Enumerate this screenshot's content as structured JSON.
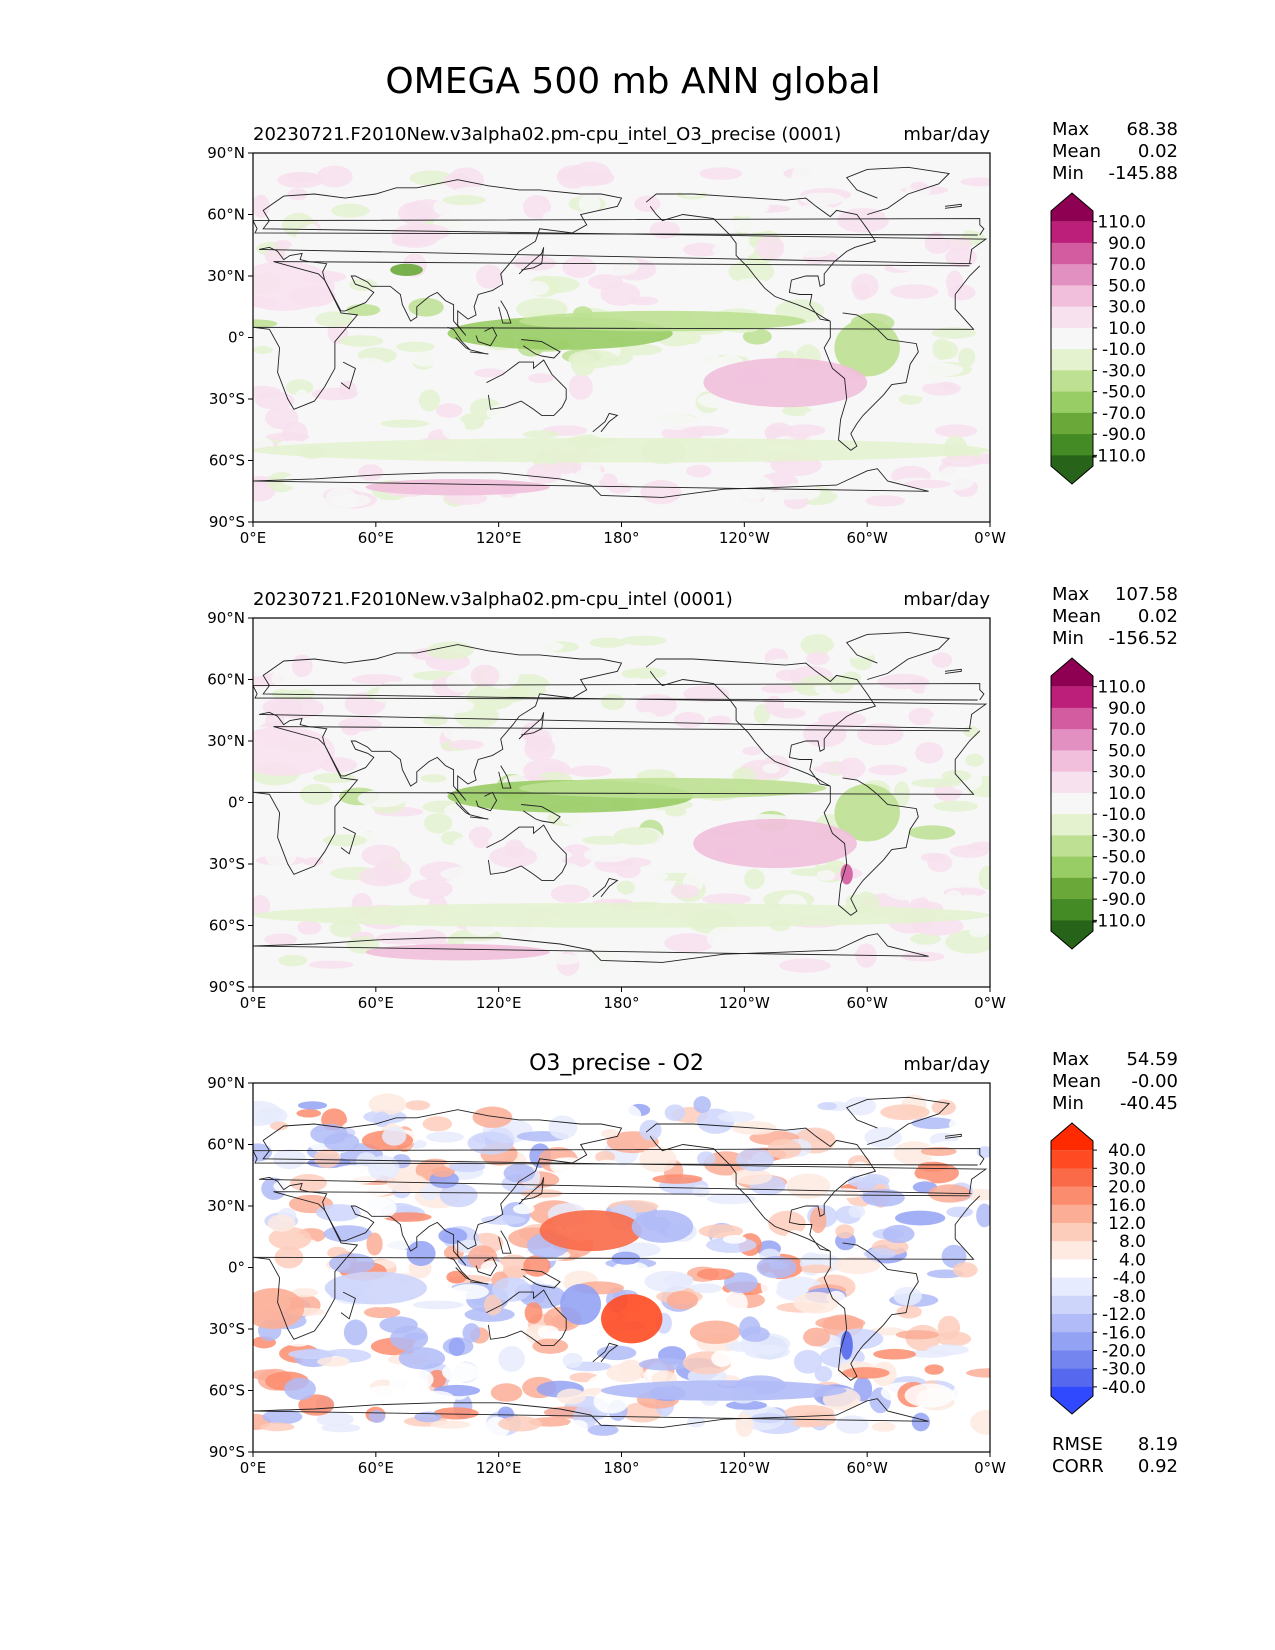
{
  "figure_title": "OMEGA 500 mb ANN global",
  "chart_data": [
    {
      "type": "heatmap",
      "title": "20230721.F2010New.v3alpha02.pm-cpu_intel_O3_precise (0001)",
      "units": "mbar/day",
      "stats": {
        "max": "68.38",
        "mean": "0.02",
        "min": "-145.88"
      },
      "stat_labels": {
        "max": "Max",
        "mean": "Mean",
        "min": "Min"
      },
      "x_ticks": [
        "0°E",
        "60°E",
        "120°E",
        "180°",
        "120°W",
        "60°W",
        "0°W"
      ],
      "y_ticks": [
        "90°N",
        "60°N",
        "30°N",
        "0°",
        "30°S",
        "60°S",
        "90°S"
      ],
      "x_range": [
        0,
        360
      ],
      "y_range": [
        -90,
        90
      ],
      "colorbar_ticks": [
        "110.0",
        "90.0",
        "70.0",
        "50.0",
        "30.0",
        "10.0",
        "-10.0",
        "-30.0",
        "-50.0",
        "-70.0",
        "-90.0",
        "-110.0"
      ],
      "colorbar_colors": [
        "#8e0152",
        "#bc1f79",
        "#d35ba0",
        "#e28fc1",
        "#f1bfdc",
        "#f8e1ef",
        "#f7f7f7",
        "#e4f2d0",
        "#bde092",
        "#98cc64",
        "#6aa83a",
        "#448b25",
        "#276419"
      ],
      "colorbar_extend": "both",
      "features": [
        {
          "name": "West Pacific ascent",
          "value": -60,
          "lon": 150,
          "lat": 2,
          "w": 55,
          "h": 8
        },
        {
          "name": "ITCZ Pacific",
          "value": -40,
          "lon": 200,
          "lat": 8,
          "w": 70,
          "h": 5
        },
        {
          "name": "Amazon ascent",
          "value": -40,
          "lon": 300,
          "lat": -5,
          "w": 16,
          "h": 14
        },
        {
          "name": "South Pacific subsidence",
          "value": 30,
          "lon": 260,
          "lat": -22,
          "w": 40,
          "h": 12
        },
        {
          "name": "Sahara subsidence",
          "value": 25,
          "lon": 15,
          "lat": 25,
          "w": 25,
          "h": 12
        },
        {
          "name": "Southern Ocean ascent",
          "value": -15,
          "lon": 180,
          "lat": -55,
          "w": 180,
          "h": 6
        },
        {
          "name": "Antarctic coast subsidence",
          "value": 30,
          "lon": 100,
          "lat": -73,
          "w": 45,
          "h": 4
        },
        {
          "name": "Himalaya ascent",
          "value": -80,
          "lon": 75,
          "lat": 33,
          "w": 8,
          "h": 3
        }
      ]
    },
    {
      "type": "heatmap",
      "title": "20230721.F2010New.v3alpha02.pm-cpu_intel (0001)",
      "units": "mbar/day",
      "stats": {
        "max": "107.58",
        "mean": "0.02",
        "min": "-156.52"
      },
      "stat_labels": {
        "max": "Max",
        "mean": "Mean",
        "min": "Min"
      },
      "x_ticks": [
        "0°E",
        "60°E",
        "120°E",
        "180°",
        "120°W",
        "60°W",
        "0°W"
      ],
      "y_ticks": [
        "90°N",
        "60°N",
        "30°N",
        "0°",
        "30°S",
        "60°S",
        "90°S"
      ],
      "x_range": [
        0,
        360
      ],
      "y_range": [
        -90,
        90
      ],
      "colorbar_ticks": [
        "110.0",
        "90.0",
        "70.0",
        "50.0",
        "30.0",
        "10.0",
        "-10.0",
        "-30.0",
        "-50.0",
        "-70.0",
        "-90.0",
        "-110.0"
      ],
      "colorbar_colors": [
        "#8e0152",
        "#bc1f79",
        "#d35ba0",
        "#e28fc1",
        "#f1bfdc",
        "#f8e1ef",
        "#f7f7f7",
        "#e4f2d0",
        "#bde092",
        "#98cc64",
        "#6aa83a",
        "#448b25",
        "#276419"
      ],
      "colorbar_extend": "both",
      "features": [
        {
          "name": "West Pacific ascent",
          "value": -60,
          "lon": 155,
          "lat": 3,
          "w": 60,
          "h": 8
        },
        {
          "name": "ITCZ Pacific",
          "value": -40,
          "lon": 205,
          "lat": 7,
          "w": 75,
          "h": 5
        },
        {
          "name": "Amazon ascent",
          "value": -40,
          "lon": 300,
          "lat": -5,
          "w": 16,
          "h": 14
        },
        {
          "name": "South Pacific subsidence",
          "value": 30,
          "lon": 255,
          "lat": -20,
          "w": 40,
          "h": 12
        },
        {
          "name": "Sahara subsidence",
          "value": 25,
          "lon": 15,
          "lat": 25,
          "w": 25,
          "h": 12
        },
        {
          "name": "Southern Ocean ascent",
          "value": -15,
          "lon": 180,
          "lat": -55,
          "w": 180,
          "h": 6
        },
        {
          "name": "Antarctic coast subsidence",
          "value": 30,
          "lon": 100,
          "lat": -73,
          "w": 45,
          "h": 4
        },
        {
          "name": "Andes subsidence",
          "value": 70,
          "lon": 290,
          "lat": -35,
          "w": 3,
          "h": 5
        }
      ]
    },
    {
      "type": "heatmap",
      "title": "O3_precise - O2",
      "units": "mbar/day",
      "stats": {
        "max": "54.59",
        "mean": "-0.00",
        "min": "-40.45"
      },
      "stat_labels": {
        "max": "Max",
        "mean": "Mean",
        "min": "Min"
      },
      "error_stats": {
        "rmse": "8.19",
        "corr": "0.92"
      },
      "error_labels": {
        "rmse": "RMSE",
        "corr": "CORR"
      },
      "x_ticks": [
        "0°E",
        "60°E",
        "120°E",
        "180°",
        "120°W",
        "60°W",
        "0°W"
      ],
      "y_ticks": [
        "90°N",
        "60°N",
        "30°N",
        "0°",
        "30°S",
        "60°S",
        "90°S"
      ],
      "x_range": [
        0,
        360
      ],
      "y_range": [
        -90,
        90
      ],
      "colorbar_ticks": [
        "40.0",
        "30.0",
        "20.0",
        "16.0",
        "12.0",
        "8.0",
        "4.0",
        "-4.0",
        "-8.0",
        "-12.0",
        "-16.0",
        "-20.0",
        "-30.0",
        "-40.0"
      ],
      "colorbar_colors": [
        "#ff2a00",
        "#ff4a22",
        "#fa6a48",
        "#fb8c6e",
        "#fcad95",
        "#fdcdbb",
        "#feeae0",
        "#ffffff",
        "#e6ebfd",
        "#cdd5fb",
        "#b0bbf7",
        "#94a2f4",
        "#7585f0",
        "#5668ed",
        "#3049ff"
      ],
      "colorbar_extend": "both",
      "features": [
        {
          "name": "Central Pacific positive",
          "value": 25,
          "lon": 165,
          "lat": 18,
          "w": 25,
          "h": 10
        },
        {
          "name": "South Pacific positive",
          "value": 30,
          "lon": 185,
          "lat": -25,
          "w": 15,
          "h": 12
        },
        {
          "name": "Coral Sea negative",
          "value": -20,
          "lon": 160,
          "lat": -18,
          "w": 10,
          "h": 10
        },
        {
          "name": "North Pacific negative",
          "value": -15,
          "lon": 200,
          "lat": 20,
          "w": 15,
          "h": 8
        },
        {
          "name": "South Atlantic positive",
          "value": 15,
          "lon": 10,
          "lat": -20,
          "w": 15,
          "h": 10
        },
        {
          "name": "Indian Ocean negative",
          "value": -12,
          "lon": 60,
          "lat": -10,
          "w": 25,
          "h": 8
        },
        {
          "name": "Southern Ocean negative",
          "value": -15,
          "lon": 230,
          "lat": -60,
          "w": 60,
          "h": 5
        },
        {
          "name": "Andes negative",
          "value": -35,
          "lon": 290,
          "lat": -38,
          "w": 3,
          "h": 7
        }
      ]
    }
  ]
}
